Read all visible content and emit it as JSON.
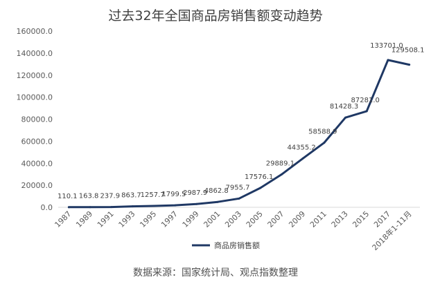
{
  "chart_data": {
    "type": "line",
    "title": "过去32年全国商品房销售额变动趋势",
    "categories": [
      "1987",
      "1989",
      "1991",
      "1993",
      "1995",
      "1997",
      "1999",
      "2001",
      "2003",
      "2005",
      "2007",
      "2009",
      "2011",
      "2013",
      "2015",
      "2017",
      "2018年1-11月"
    ],
    "series": [
      {
        "name": "商品房销售额",
        "color": "#1f3864",
        "values": [
          110.1,
          163.8,
          237.9,
          863.7,
          1257.7,
          1799.5,
          2987.9,
          4862.8,
          7955.7,
          17576.1,
          29889.1,
          44355.2,
          58588.9,
          81428.3,
          87281.0,
          133701.0,
          129508.1
        ],
        "labels": [
          "110.1",
          "163.8",
          "237.9",
          "863.7",
          "1257.7",
          "1799.5",
          "2987.9",
          "4862.8",
          "7955.7",
          "17576.1",
          "29889.1",
          "44355.2",
          "58588.9",
          "81428.3",
          "87281.0",
          "133701.0",
          "129508.1"
        ]
      }
    ],
    "yticks": [
      "0.0",
      "20000.0",
      "40000.0",
      "60000.0",
      "80000.0",
      "100000.0",
      "120000.0",
      "140000.0",
      "160000.0"
    ],
    "ylim": [
      0,
      160000
    ],
    "grid": false,
    "legend_position": "bottom",
    "xlabel": "",
    "ylabel": ""
  },
  "source_text": "数据来源：国家统计局、观点指数整理"
}
